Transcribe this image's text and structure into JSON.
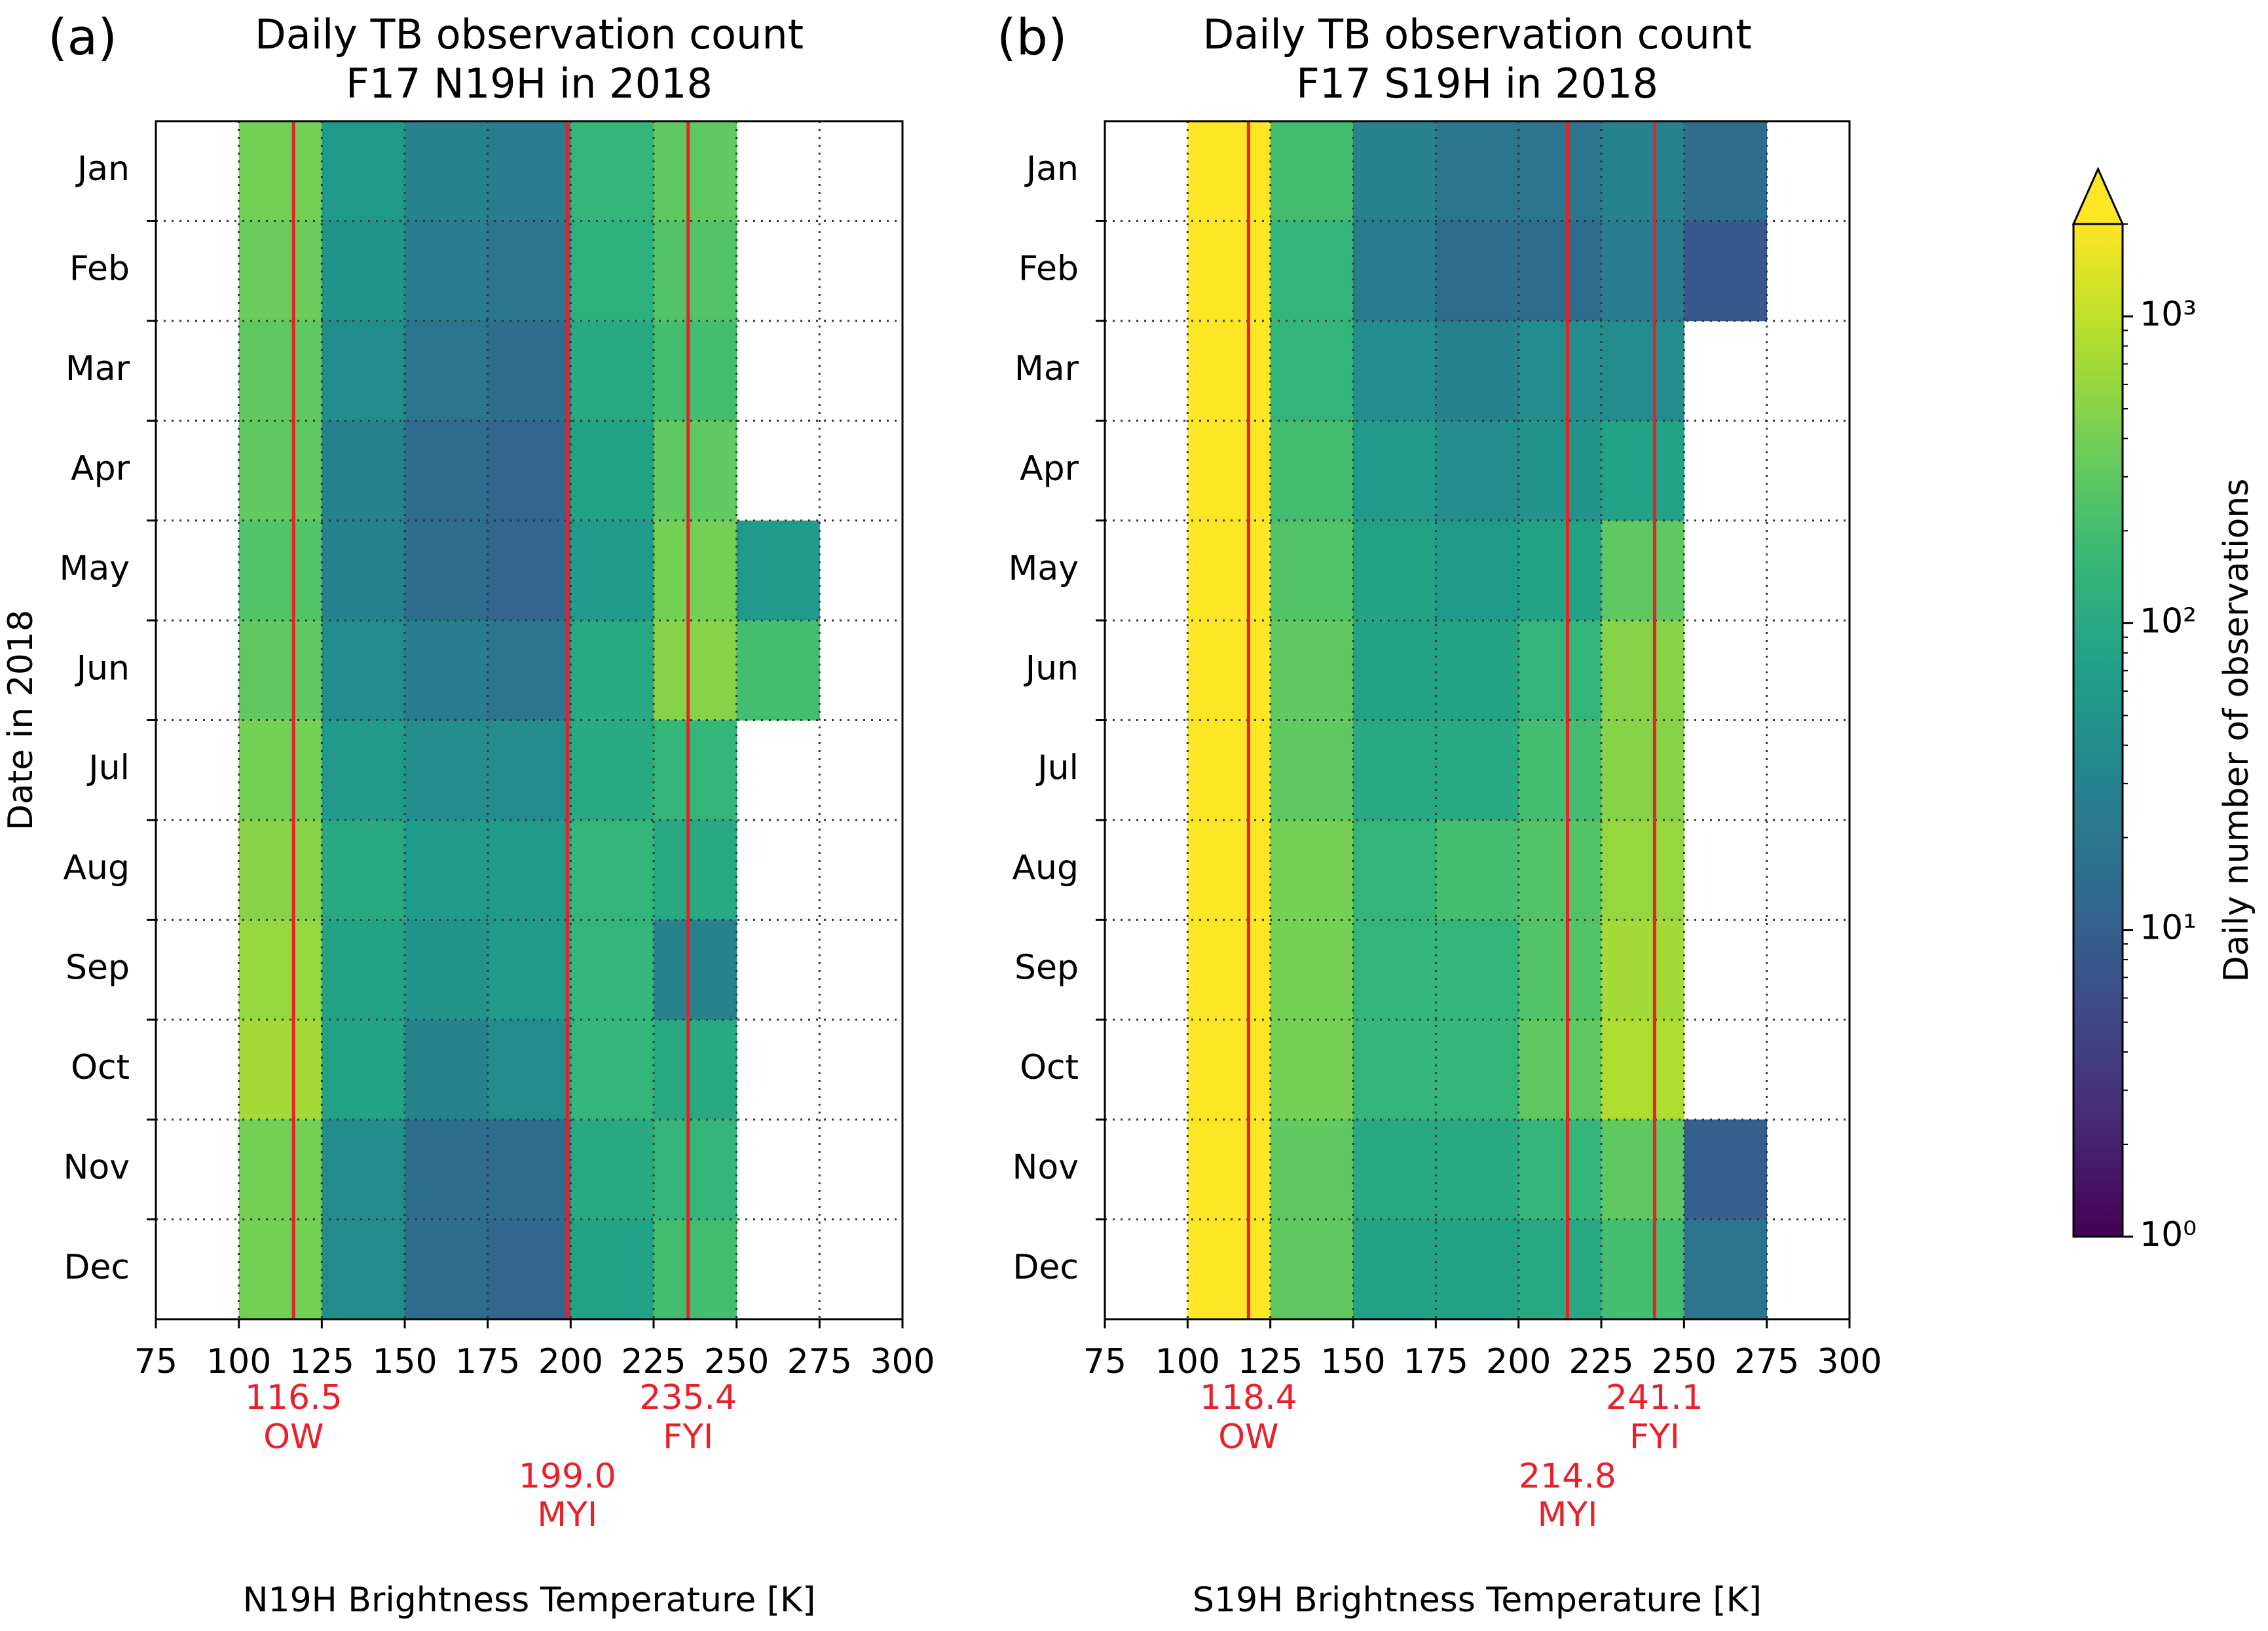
{
  "chart_data": [
    {
      "type": "heatmap",
      "panel_label": "(a)",
      "title": "Daily TB observation count",
      "subtitle": "F17 N19H in 2018",
      "xlabel": "N19H Brightness Temperature [K]",
      "ylabel": "Date in 2018",
      "categories": [
        "Jan",
        "Feb",
        "Mar",
        "Apr",
        "May",
        "Jun",
        "Jul",
        "Aug",
        "Sep",
        "Oct",
        "Nov",
        "Dec"
      ],
      "bins": [
        75,
        100,
        125,
        150,
        175,
        200,
        225,
        250,
        275
      ],
      "values": [
        [
          null,
          400,
          60,
          30,
          25,
          150,
          300,
          null
        ],
        [
          null,
          350,
          50,
          25,
          20,
          120,
          250,
          null
        ],
        [
          null,
          300,
          40,
          20,
          15,
          100,
          200,
          null
        ],
        [
          null,
          300,
          30,
          15,
          12,
          80,
          300,
          null
        ],
        [
          null,
          250,
          30,
          15,
          12,
          60,
          400,
          60
        ],
        [
          null,
          300,
          40,
          25,
          20,
          100,
          500,
          200
        ],
        [
          null,
          400,
          60,
          40,
          40,
          100,
          150,
          null
        ],
        [
          null,
          500,
          100,
          60,
          60,
          150,
          100,
          null
        ],
        [
          null,
          600,
          80,
          50,
          60,
          150,
          30,
          null
        ],
        [
          null,
          700,
          80,
          30,
          40,
          150,
          100,
          null
        ],
        [
          null,
          400,
          40,
          15,
          15,
          100,
          150,
          null
        ],
        [
          null,
          400,
          40,
          15,
          12,
          80,
          200,
          null
        ]
      ],
      "xlim": [
        75,
        300
      ],
      "xticks": [
        75,
        100,
        125,
        150,
        175,
        200,
        225,
        250,
        275,
        300
      ],
      "grid": true,
      "annotations": [
        {
          "value": 116.5,
          "label": "116.5",
          "text": "OW",
          "color": "#e8202a"
        },
        {
          "value": 199.0,
          "label": "199.0",
          "text": "MYI",
          "color": "#e8202a"
        },
        {
          "value": 235.4,
          "label": "235.4",
          "text": "FYI",
          "color": "#e8202a"
        }
      ]
    },
    {
      "type": "heatmap",
      "panel_label": "(b)",
      "title": "Daily TB observation count",
      "subtitle": "F17 S19H in 2018",
      "xlabel": "S19H Brightness Temperature [K]",
      "categories": [
        "Jan",
        "Feb",
        "Mar",
        "Apr",
        "May",
        "Jun",
        "Jul",
        "Aug",
        "Sep",
        "Oct",
        "Nov",
        "Dec"
      ],
      "bins": [
        75,
        100,
        125,
        150,
        175,
        200,
        225,
        250,
        275
      ],
      "values": [
        [
          null,
          2000,
          200,
          30,
          20,
          20,
          30,
          15
        ],
        [
          null,
          2000,
          150,
          25,
          15,
          15,
          25,
          8
        ],
        [
          null,
          2000,
          150,
          40,
          30,
          40,
          40,
          null
        ],
        [
          null,
          2000,
          200,
          60,
          40,
          50,
          80,
          null
        ],
        [
          null,
          2000,
          250,
          80,
          60,
          80,
          300,
          null
        ],
        [
          null,
          2000,
          300,
          80,
          80,
          150,
          500,
          null
        ],
        [
          null,
          2000,
          300,
          100,
          100,
          200,
          500,
          null
        ],
        [
          null,
          2000,
          400,
          150,
          200,
          250,
          600,
          null
        ],
        [
          null,
          2000,
          400,
          150,
          150,
          250,
          700,
          null
        ],
        [
          null,
          2000,
          400,
          150,
          150,
          300,
          800,
          null
        ],
        [
          null,
          2000,
          300,
          100,
          100,
          150,
          300,
          10
        ],
        [
          null,
          2000,
          300,
          80,
          80,
          100,
          200,
          20
        ]
      ],
      "xlim": [
        75,
        300
      ],
      "xticks": [
        75,
        100,
        125,
        150,
        175,
        200,
        225,
        250,
        275,
        300
      ],
      "grid": true,
      "annotations": [
        {
          "value": 118.4,
          "label": "118.4",
          "text": "OW",
          "color": "#e8202a"
        },
        {
          "value": 214.8,
          "label": "214.8",
          "text": "MYI",
          "color": "#e8202a"
        },
        {
          "value": 241.1,
          "label": "241.1",
          "text": "FYI",
          "color": "#e8202a"
        }
      ]
    }
  ],
  "colorbar": {
    "label": "Daily number of observations",
    "colormap": "viridis",
    "log_scale": true,
    "extend": "max",
    "clim": [
      1,
      2000
    ],
    "ticks": [
      {
        "value": 1,
        "label": "10⁰"
      },
      {
        "value": 10,
        "label": "10¹"
      },
      {
        "value": 100,
        "label": "10²"
      },
      {
        "value": 1000,
        "label": "10³"
      }
    ]
  }
}
